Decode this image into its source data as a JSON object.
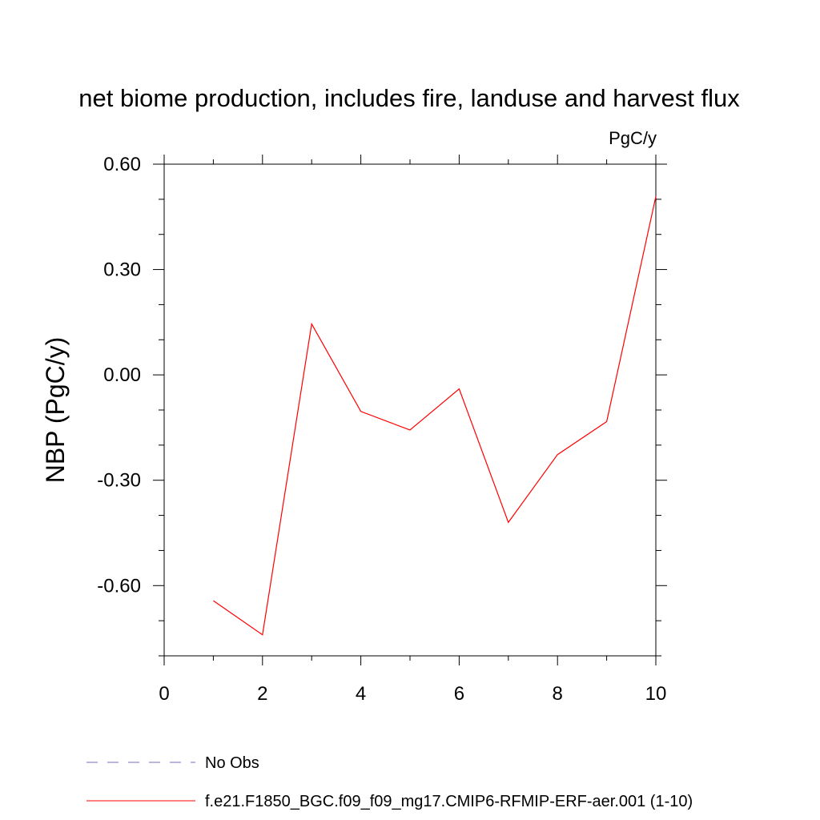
{
  "chart_data": {
    "type": "line",
    "title": "net biome production, includes fire, landuse and harvest flux",
    "units": "PgC/y",
    "xlabel": "",
    "ylabel": "NBP  (PgC/y)",
    "xlim": [
      0,
      10
    ],
    "ylim": [
      -0.8,
      0.6
    ],
    "x_ticks": [
      0,
      2,
      4,
      6,
      8,
      10
    ],
    "x_tick_labels": [
      "0",
      "2",
      "4",
      "6",
      "8",
      "10"
    ],
    "y_ticks": [
      0.6,
      0.3,
      0.0,
      -0.3,
      -0.6
    ],
    "y_tick_labels": [
      "0.60",
      "0.30",
      "0.00",
      "-0.30",
      "-0.60"
    ],
    "grid": false,
    "legend_position": "bottom",
    "series": [
      {
        "name": "f.e21.F1850_BGC.f09_f09_mg17.CMIP6-RFMIP-ERF-aer.001 (1-10)",
        "color": "#ff0000",
        "style": "solid",
        "x": [
          1,
          2,
          3,
          4,
          5,
          6,
          7,
          8,
          9,
          10
        ],
        "values": [
          -0.643,
          -0.74,
          0.145,
          -0.104,
          -0.157,
          -0.04,
          -0.42,
          -0.227,
          -0.133,
          0.508
        ]
      }
    ],
    "legend": [
      {
        "label": "No Obs",
        "color": "#6f6fbf",
        "style": "dashed"
      },
      {
        "label": "f.e21.F1850_BGC.f09_f09_mg17.CMIP6-RFMIP-ERF-aer.001 (1-10)",
        "color": "#ff0000",
        "style": "solid"
      }
    ]
  }
}
